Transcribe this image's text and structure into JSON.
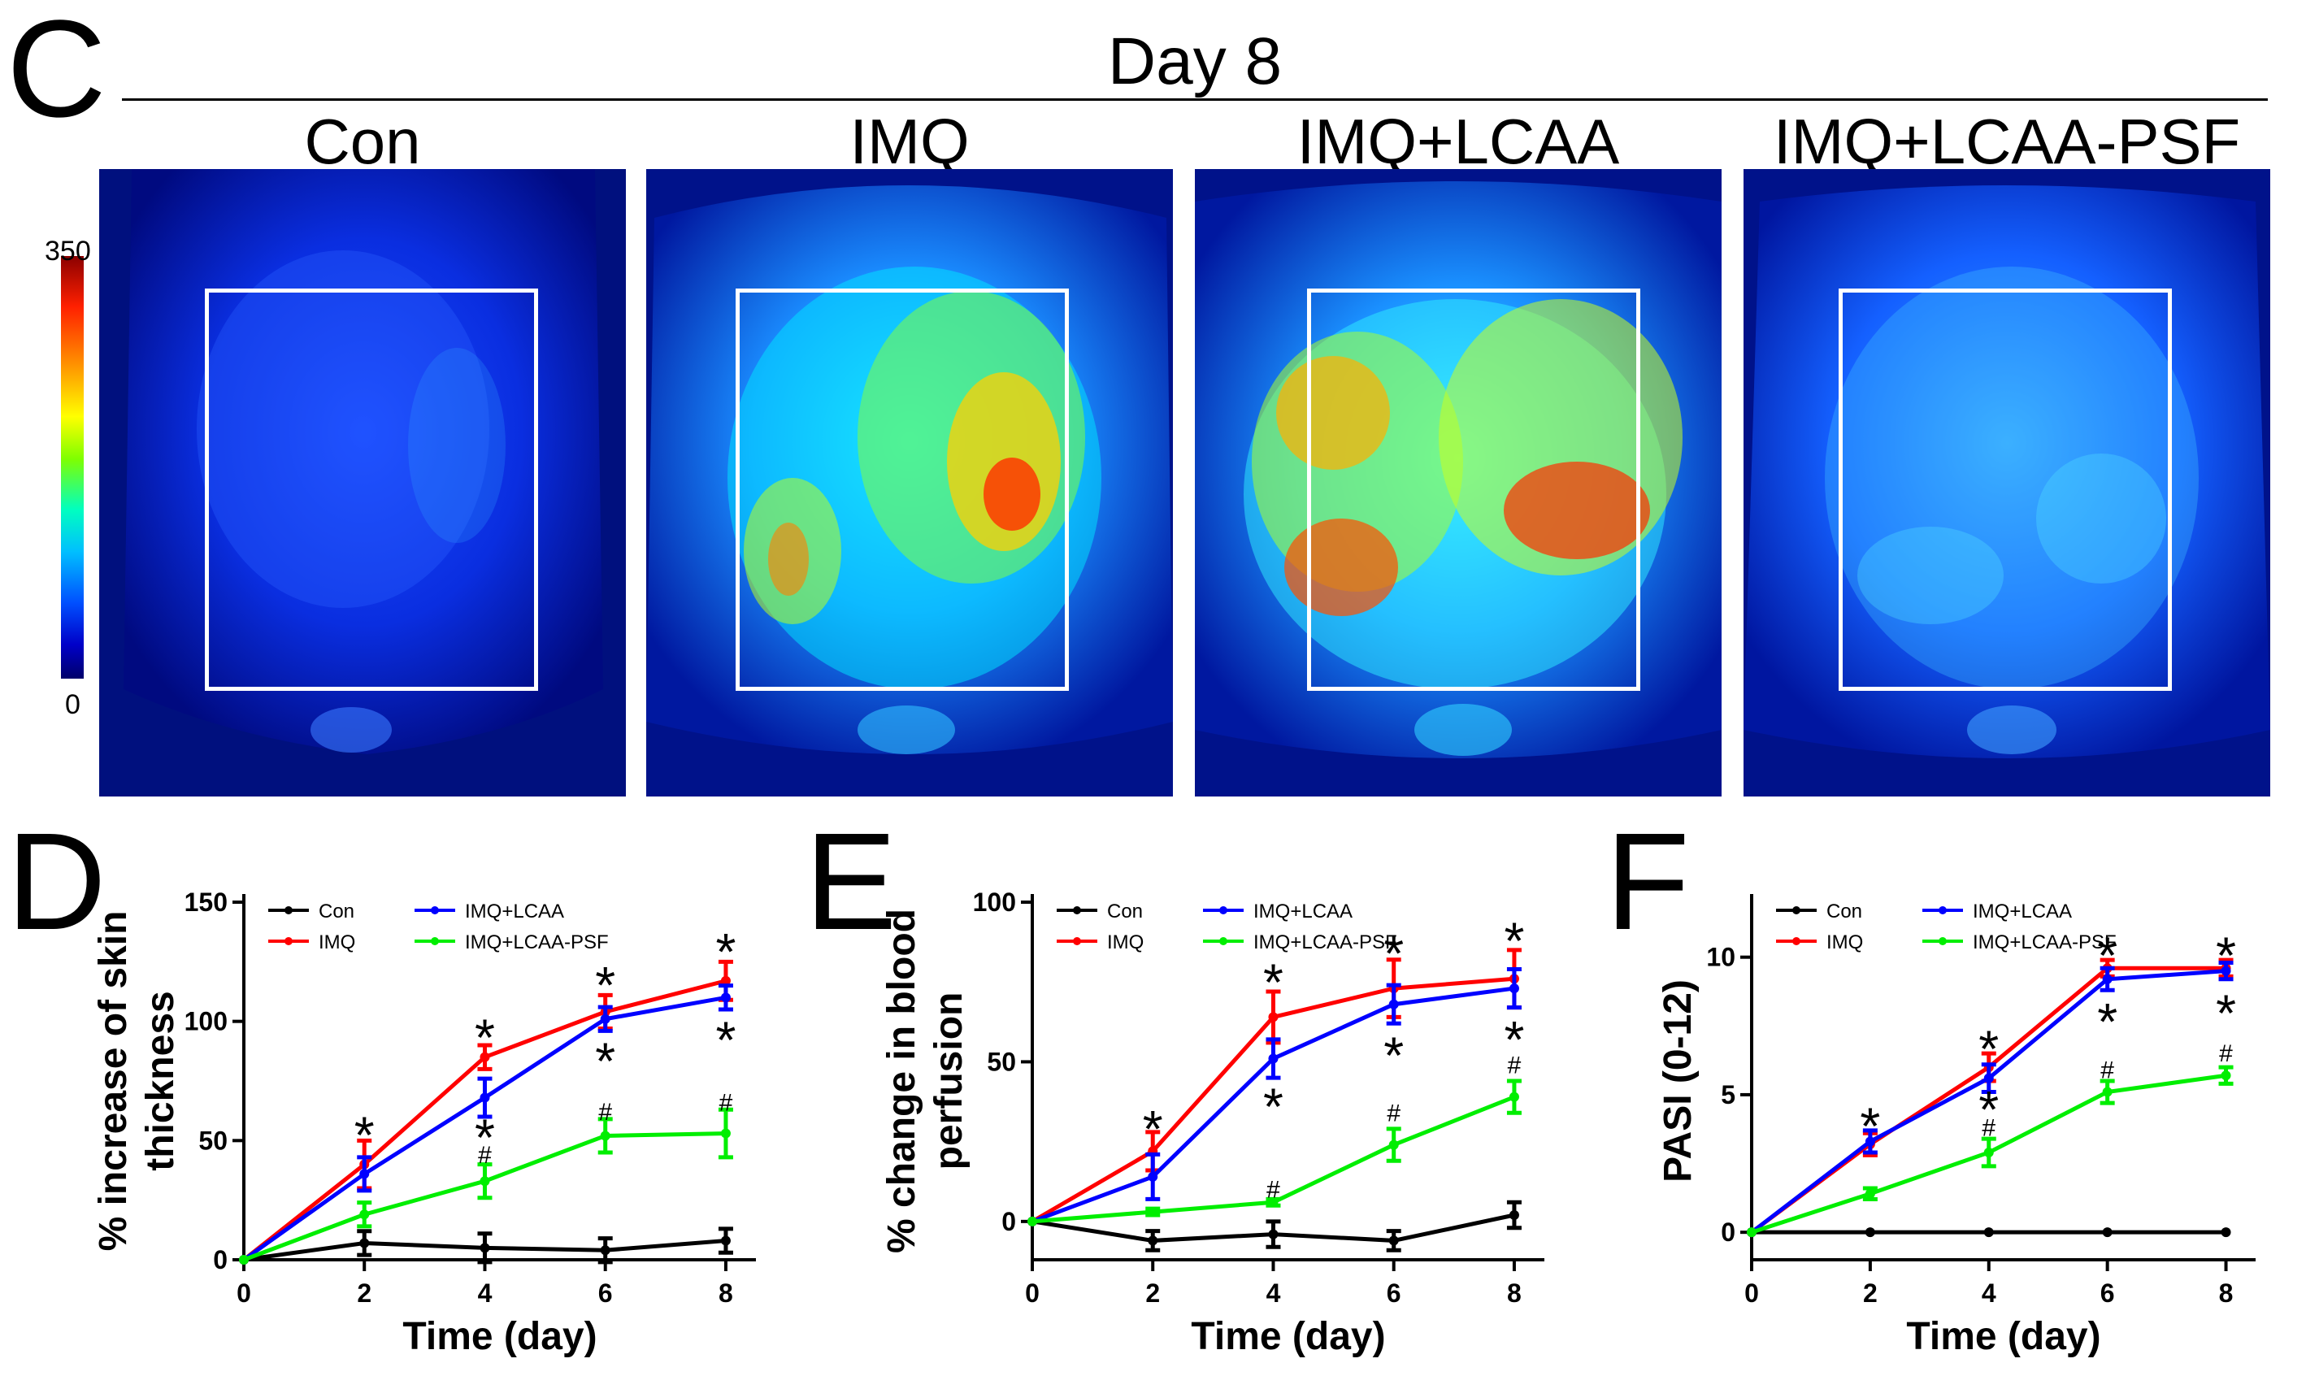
{
  "panel_labels": {
    "c": "C",
    "d": "D",
    "e": "E",
    "f": "F"
  },
  "heading": "Day 8",
  "images": [
    {
      "label": "Con"
    },
    {
      "label": "IMQ"
    },
    {
      "label": "IMQ+LCAA"
    },
    {
      "label": "IMQ+LCAA-PSF"
    }
  ],
  "color_scale": {
    "max": "350",
    "min": "0"
  },
  "colors": {
    "Con": "#000000",
    "IMQ": "#ff0000",
    "IMQ+LCAA": "#0000ff",
    "IMQ+LCAA-PSF": "#00ee00"
  },
  "chart_data": [
    {
      "type": "line",
      "xlabel": "Time (day)",
      "ylabel": "% increase of skin thickness",
      "ylabel_lines": [
        "% increase of skin",
        "thickness"
      ],
      "xlim": [
        0,
        8.5
      ],
      "ylim": [
        0,
        150
      ],
      "xticks": [
        0,
        2,
        4,
        6,
        8
      ],
      "yticks": [
        0,
        50,
        100,
        150
      ],
      "legend": [
        "Con",
        "IMQ",
        "IMQ+LCAA",
        "IMQ+LCAA-PSF"
      ],
      "x": [
        0,
        2,
        4,
        6,
        8
      ],
      "series": [
        {
          "name": "Con",
          "values": [
            0,
            7,
            5,
            4,
            8
          ],
          "err": [
            0,
            5,
            6,
            5,
            5
          ]
        },
        {
          "name": "IMQ",
          "values": [
            0,
            40,
            85,
            104,
            117
          ],
          "err": [
            0,
            10,
            5,
            7,
            8
          ]
        },
        {
          "name": "IMQ+LCAA",
          "values": [
            0,
            36,
            68,
            101,
            110
          ],
          "err": [
            0,
            7,
            8,
            5,
            5
          ]
        },
        {
          "name": "IMQ+LCAA-PSF",
          "values": [
            0,
            19,
            33,
            52,
            53
          ],
          "err": [
            0,
            5,
            7,
            7,
            10
          ]
        }
      ],
      "annotations": [
        {
          "text": "*",
          "x": 2,
          "y": 55
        },
        {
          "text": "*",
          "x": 4,
          "y": 96
        },
        {
          "text": "*",
          "x": 4,
          "y": 54
        },
        {
          "text": "#",
          "x": 4,
          "y": 44
        },
        {
          "text": "*",
          "x": 6,
          "y": 118
        },
        {
          "text": "*",
          "x": 6,
          "y": 86
        },
        {
          "text": "#",
          "x": 6,
          "y": 62
        },
        {
          "text": "*",
          "x": 8,
          "y": 132
        },
        {
          "text": "*",
          "x": 8,
          "y": 95
        },
        {
          "text": "#",
          "x": 8,
          "y": 66
        }
      ]
    },
    {
      "type": "line",
      "xlabel": "Time (day)",
      "ylabel": "% change in blood perfusion",
      "ylabel_lines": [
        "% change in blood",
        "perfusion"
      ],
      "xlim": [
        0,
        8.5
      ],
      "ylim": [
        -12,
        100
      ],
      "xticks": [
        0,
        2,
        4,
        6,
        8
      ],
      "yticks": [
        0,
        50,
        100
      ],
      "legend": [
        "Con",
        "IMQ",
        "IMQ+LCAA",
        "IMQ+LCAA-PSF"
      ],
      "x": [
        0,
        2,
        4,
        6,
        8
      ],
      "series": [
        {
          "name": "Con",
          "values": [
            0,
            -6,
            -4,
            -6,
            2
          ],
          "err": [
            0,
            3,
            4,
            3,
            4
          ]
        },
        {
          "name": "IMQ",
          "values": [
            0,
            22,
            64,
            73,
            76
          ],
          "err": [
            0,
            6,
            8,
            9,
            9
          ]
        },
        {
          "name": "IMQ+LCAA",
          "values": [
            0,
            14,
            51,
            68,
            73
          ],
          "err": [
            0,
            7,
            6,
            6,
            6
          ]
        },
        {
          "name": "IMQ+LCAA-PSF",
          "values": [
            0,
            3,
            6,
            24,
            39
          ],
          "err": [
            0,
            1,
            1,
            5,
            5
          ]
        }
      ],
      "annotations": [
        {
          "text": "*",
          "x": 2,
          "y": 31
        },
        {
          "text": "*",
          "x": 4,
          "y": 77
        },
        {
          "text": "*",
          "x": 4,
          "y": 38
        },
        {
          "text": "#",
          "x": 4,
          "y": 10
        },
        {
          "text": "*",
          "x": 6,
          "y": 86
        },
        {
          "text": "*",
          "x": 6,
          "y": 54
        },
        {
          "text": "#",
          "x": 6,
          "y": 34
        },
        {
          "text": "*",
          "x": 8,
          "y": 90
        },
        {
          "text": "*",
          "x": 8,
          "y": 59
        },
        {
          "text": "#",
          "x": 8,
          "y": 49
        }
      ]
    },
    {
      "type": "line",
      "xlabel": "Time (day)",
      "ylabel": "PASI (0-12)",
      "ylabel_lines": [
        "PASI (0-12)"
      ],
      "xlim": [
        0,
        8.5
      ],
      "ylim": [
        -1,
        12
      ],
      "xticks": [
        0,
        2,
        4,
        6,
        8
      ],
      "yticks": [
        0,
        5,
        10
      ],
      "legend": [
        "Con",
        "IMQ",
        "IMQ+LCAA",
        "IMQ+LCAA-PSF"
      ],
      "x": [
        0,
        2,
        4,
        6,
        8
      ],
      "series": [
        {
          "name": "Con",
          "values": [
            0,
            0,
            0,
            0,
            0
          ],
          "err": [
            0,
            0,
            0,
            0,
            0
          ]
        },
        {
          "name": "IMQ",
          "values": [
            0,
            3.2,
            6.0,
            9.6,
            9.6
          ],
          "err": [
            0,
            0.4,
            0.5,
            0.3,
            0.3
          ]
        },
        {
          "name": "IMQ+LCAA",
          "values": [
            0,
            3.3,
            5.6,
            9.2,
            9.5
          ],
          "err": [
            0,
            0.4,
            0.5,
            0.4,
            0.3
          ]
        },
        {
          "name": "IMQ+LCAA-PSF",
          "values": [
            0,
            1.4,
            2.9,
            5.1,
            5.7
          ],
          "err": [
            0,
            0.2,
            0.5,
            0.4,
            0.3
          ]
        }
      ],
      "annotations": [
        {
          "text": "*",
          "x": 2,
          "y": 4.1
        },
        {
          "text": "*",
          "x": 4,
          "y": 6.9
        },
        {
          "text": "*",
          "x": 4,
          "y": 4.7
        },
        {
          "text": "#",
          "x": 4,
          "y": 3.8
        },
        {
          "text": "*",
          "x": 6,
          "y": 10.3
        },
        {
          "text": "*",
          "x": 6,
          "y": 7.9
        },
        {
          "text": "#",
          "x": 6,
          "y": 5.9
        },
        {
          "text": "*",
          "x": 8,
          "y": 10.3
        },
        {
          "text": "*",
          "x": 8,
          "y": 8.2
        },
        {
          "text": "#",
          "x": 8,
          "y": 6.5
        }
      ]
    }
  ]
}
